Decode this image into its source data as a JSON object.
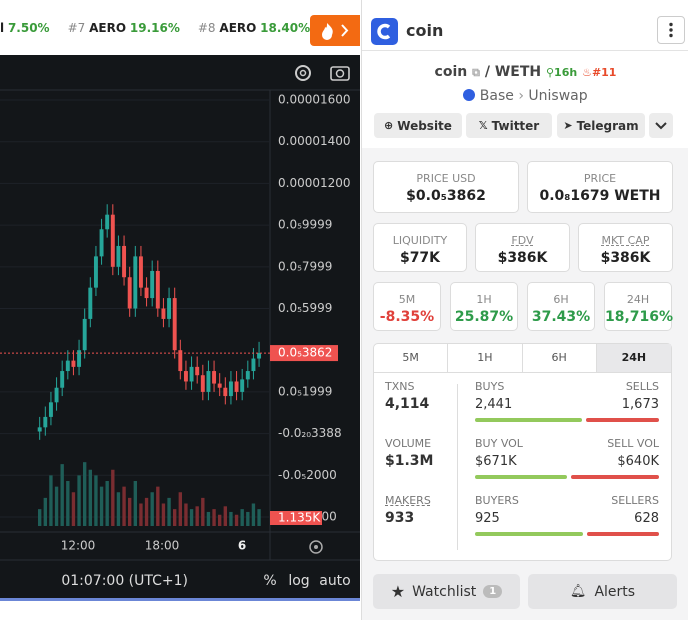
{
  "ticker": [
    {
      "label": "l",
      "change": "7.50%"
    },
    {
      "rank": "#7",
      "label": "AERO",
      "change": "19.16%"
    },
    {
      "rank": "#8",
      "label": "AERO",
      "change": "18.40%"
    }
  ],
  "chart": {
    "type": "candlestick",
    "ylim": [
      -4.72e-06,
      1.648e-05
    ],
    "yticks": [
      {
        "value": 1.6e-05,
        "label": "0.00001600"
      },
      {
        "value": 1.4e-05,
        "label": "0.00001400"
      },
      {
        "value": 1.2e-05,
        "label": "0.00001200"
      },
      {
        "value": 9.999e-06,
        "label": "0.0₅9999"
      },
      {
        "value": 7.999e-06,
        "label": "0.0₅7999"
      },
      {
        "value": 5.999e-06,
        "label": "0.0₅5999"
      },
      {
        "value": 1.999e-06,
        "label": "0.0₅1999"
      },
      {
        "value": 0,
        "label": "-0.0₂₀3388"
      },
      {
        "value": -2e-06,
        "label": "-0.0₅2000"
      },
      {
        "value": -4e-06,
        "label": "-0.0₅4000"
      }
    ],
    "price_tag": {
      "value": 3.862e-06,
      "label": "0.0₅3862"
    },
    "candles": [
      [
        1e-07,
        8e-07,
        -3e-07,
        3e-07
      ],
      [
        3e-07,
        1.3e-06,
        -1e-07,
        8e-07
      ],
      [
        8e-07,
        2e-06,
        4e-07,
        1.5e-06
      ],
      [
        1.5e-06,
        2.7e-06,
        1.1e-06,
        2.2e-06
      ],
      [
        2.2e-06,
        3.5e-06,
        1.8e-06,
        3e-06
      ],
      [
        3e-06,
        4e-06,
        2.6e-06,
        3.5e-06
      ],
      [
        3.5e-06,
        4e-06,
        2.8e-06,
        3.2e-06
      ],
      [
        3.2e-06,
        4.5e-06,
        2.8e-06,
        4e-06
      ],
      [
        4e-06,
        6e-06,
        3.6e-06,
        5.5e-06
      ],
      [
        5.5e-06,
        7.5e-06,
        5.1e-06,
        7e-06
      ],
      [
        7e-06,
        9e-06,
        6.6e-06,
        8.5e-06
      ],
      [
        8.5e-06,
        1.03e-05,
        8.1e-06,
        9.8e-06
      ],
      [
        9.8e-06,
        1.1e-05,
        9.4e-06,
        1.05e-05
      ],
      [
        1.05e-05,
        1.1e-05,
        7.6e-06,
        8e-06
      ],
      [
        8e-06,
        9.5e-06,
        7.6e-06,
        9e-06
      ],
      [
        9e-06,
        9.5e-06,
        7.1e-06,
        7.5e-06
      ],
      [
        7.5e-06,
        8e-06,
        5.6e-06,
        6e-06
      ],
      [
        6e-06,
        9e-06,
        5.6e-06,
        8.5e-06
      ],
      [
        8.5e-06,
        9e-06,
        6.6e-06,
        7e-06
      ],
      [
        7e-06,
        7.5e-06,
        6.1e-06,
        6.5e-06
      ],
      [
        6.5e-06,
        8.3e-06,
        6.1e-06,
        7.8e-06
      ],
      [
        7.8e-06,
        8.3e-06,
        5.6e-06,
        6e-06
      ],
      [
        6e-06,
        6.5e-06,
        5.1e-06,
        5.5e-06
      ],
      [
        5.5e-06,
        7e-06,
        5.1e-06,
        6.5e-06
      ],
      [
        6.5e-06,
        7e-06,
        3.6e-06,
        4e-06
      ],
      [
        4e-06,
        4.5e-06,
        2.6e-06,
        3e-06
      ],
      [
        3e-06,
        3.5e-06,
        2.1e-06,
        2.5e-06
      ],
      [
        2.5e-06,
        3.7e-06,
        2.1e-06,
        3.2e-06
      ],
      [
        3.2e-06,
        3.7e-06,
        2.4e-06,
        2.8e-06
      ],
      [
        2.8e-06,
        3.3e-06,
        1.6e-06,
        2e-06
      ],
      [
        2e-06,
        3.5e-06,
        1.6e-06,
        3e-06
      ],
      [
        3e-06,
        3.5e-06,
        2e-06,
        2.4e-06
      ],
      [
        2.4e-06,
        2.9e-06,
        1.8e-06,
        2.2e-06
      ],
      [
        2.2e-06,
        2.7e-06,
        1.4e-06,
        1.8e-06
      ],
      [
        1.8e-06,
        3e-06,
        1.4e-06,
        2.5e-06
      ],
      [
        2.5e-06,
        3e-06,
        1.6e-06,
        2e-06
      ],
      [
        2e-06,
        3.1e-06,
        1.6e-06,
        2.6e-06
      ],
      [
        2.6e-06,
        3.5e-06,
        2.2e-06,
        3e-06
      ],
      [
        3e-06,
        4.1e-06,
        2.6e-06,
        3.6e-06
      ],
      [
        3.6e-06,
        4.4e-06,
        3.2e-06,
        3.862e-06
      ]
    ],
    "volume": [
      300,
      500,
      900,
      700,
      1100,
      800,
      600,
      900,
      1135,
      1000,
      900,
      700,
      800,
      1000,
      600,
      700,
      500,
      800,
      400,
      500,
      600,
      700,
      400,
      500,
      300,
      600,
      400,
      300,
      350,
      500,
      250,
      300,
      200,
      350,
      250,
      200,
      300,
      250,
      400,
      300
    ],
    "volume_lim": [
      0,
      1600
    ],
    "volume_tag": "1.135K",
    "time_labels": [
      "12:00",
      "18:00",
      "6"
    ]
  },
  "status_bar": {
    "time": "01:07:00 (UTC+1)",
    "options": [
      "%",
      "log",
      "auto"
    ]
  },
  "header": {
    "name": "coin"
  },
  "token": {
    "base": "coin",
    "separator": "/",
    "quote": "WETH",
    "age": "16h",
    "rank": "#11",
    "chain": "Base",
    "dex": "Uniswap"
  },
  "links": [
    "Website",
    "Twitter",
    "Telegram"
  ],
  "prices": [
    {
      "label": "PRICE USD",
      "value": "$0.0₅3862"
    },
    {
      "label": "PRICE",
      "value": "0.0₈1679 WETH"
    }
  ],
  "metrics": [
    {
      "label": "LIQUIDITY",
      "value": "$77K"
    },
    {
      "label": "FDV",
      "value": "$386K"
    },
    {
      "label": "MKT CAP",
      "value": "$386K"
    }
  ],
  "changes": [
    {
      "label": "5M",
      "value": "-8.35%"
    },
    {
      "label": "1H",
      "value": "25.87%"
    },
    {
      "label": "6H",
      "value": "37.43%"
    },
    {
      "label": "24H",
      "value": "18,716%"
    }
  ],
  "tabs": [
    "5M",
    "1H",
    "6H",
    "24H"
  ],
  "selected_tab": 3,
  "stats": [
    {
      "label": "TXNS",
      "value": "4,114",
      "left": {
        "label": "BUYS",
        "value": "2,441",
        "amount": 2441
      },
      "right": {
        "label": "SELLS",
        "value": "1,673",
        "amount": 1673
      }
    },
    {
      "label": "VOLUME",
      "value": "$1.3M",
      "left": {
        "label": "BUY VOL",
        "value": "$671K",
        "amount": 671000
      },
      "right": {
        "label": "SELL VOL",
        "value": "$640K",
        "amount": 640000
      }
    },
    {
      "label": "MAKERS",
      "value": "933",
      "left": {
        "label": "BUYERS",
        "value": "925",
        "amount": 925
      },
      "right": {
        "label": "SELLERS",
        "value": "628",
        "amount": 628
      }
    }
  ],
  "watchlist": {
    "label": "Watchlist",
    "count": "1"
  },
  "alerts": "Alerts"
}
